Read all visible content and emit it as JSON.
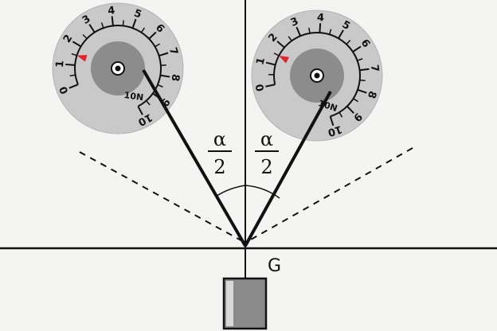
{
  "diagram": {
    "angle_label_left": {
      "numerator": "α",
      "denominator": "2"
    },
    "angle_label_right": {
      "numerator": "α",
      "denominator": "2"
    },
    "point_label": "G"
  },
  "dials": [
    {
      "id": "left",
      "unit": "10N",
      "scale": [
        "0",
        "1",
        "2",
        "3",
        "4",
        "5",
        "6",
        "7",
        "8",
        "9",
        "10"
      ],
      "reading": 1.5,
      "marker_color": "#e4202a"
    },
    {
      "id": "right",
      "unit": "10N",
      "scale": [
        "0",
        "1",
        "2",
        "3",
        "4",
        "5",
        "6",
        "7",
        "8",
        "9",
        "10"
      ],
      "reading": 1.5,
      "marker_color": "#e4202a"
    }
  ]
}
